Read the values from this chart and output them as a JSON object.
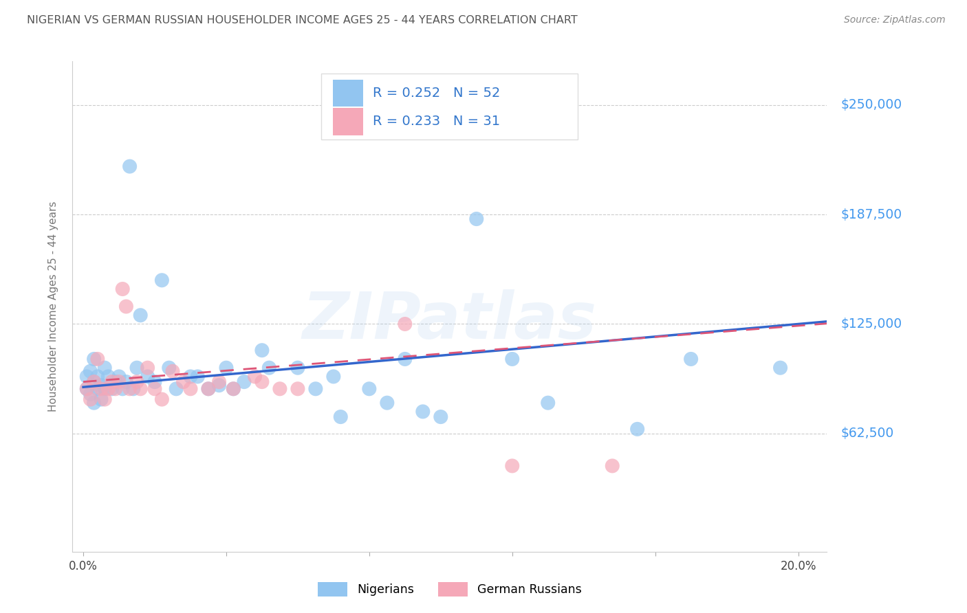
{
  "title": "NIGERIAN VS GERMAN RUSSIAN HOUSEHOLDER INCOME AGES 25 - 44 YEARS CORRELATION CHART",
  "source": "Source: ZipAtlas.com",
  "ylabel": "Householder Income Ages 25 - 44 years",
  "ytick_values": [
    62500,
    125000,
    187500,
    250000
  ],
  "ytick_labels": [
    "$62,500",
    "$125,000",
    "$187,500",
    "$250,000"
  ],
  "ymax": 275000,
  "ymin": -5000,
  "xmin": -0.003,
  "xmax": 0.208,
  "watermark_text": "ZIPatlas",
  "nigerian_x": [
    0.001,
    0.001,
    0.002,
    0.002,
    0.003,
    0.003,
    0.003,
    0.004,
    0.004,
    0.005,
    0.005,
    0.006,
    0.006,
    0.007,
    0.008,
    0.009,
    0.01,
    0.011,
    0.012,
    0.013,
    0.014,
    0.015,
    0.016,
    0.018,
    0.02,
    0.022,
    0.024,
    0.026,
    0.03,
    0.032,
    0.035,
    0.038,
    0.04,
    0.042,
    0.045,
    0.05,
    0.052,
    0.06,
    0.065,
    0.07,
    0.072,
    0.08,
    0.085,
    0.09,
    0.095,
    0.1,
    0.11,
    0.12,
    0.13,
    0.155,
    0.17,
    0.195
  ],
  "nigerian_y": [
    95000,
    88000,
    98000,
    85000,
    92000,
    105000,
    80000,
    88000,
    95000,
    90000,
    82000,
    100000,
    88000,
    95000,
    88000,
    92000,
    95000,
    88000,
    92000,
    215000,
    88000,
    100000,
    130000,
    95000,
    92000,
    150000,
    100000,
    88000,
    95000,
    95000,
    88000,
    90000,
    100000,
    88000,
    92000,
    110000,
    100000,
    100000,
    88000,
    95000,
    72000,
    88000,
    80000,
    105000,
    75000,
    72000,
    185000,
    105000,
    80000,
    65000,
    105000,
    100000
  ],
  "german_russian_x": [
    0.001,
    0.002,
    0.003,
    0.004,
    0.005,
    0.006,
    0.007,
    0.008,
    0.009,
    0.01,
    0.011,
    0.012,
    0.013,
    0.015,
    0.016,
    0.018,
    0.02,
    0.022,
    0.025,
    0.028,
    0.03,
    0.035,
    0.038,
    0.042,
    0.048,
    0.05,
    0.055,
    0.06,
    0.09,
    0.12,
    0.148
  ],
  "german_russian_y": [
    88000,
    82000,
    92000,
    105000,
    88000,
    82000,
    88000,
    92000,
    88000,
    92000,
    145000,
    135000,
    88000,
    92000,
    88000,
    100000,
    88000,
    82000,
    98000,
    92000,
    88000,
    88000,
    92000,
    88000,
    95000,
    92000,
    88000,
    88000,
    125000,
    44000,
    44000
  ],
  "nigerian_R": 0.252,
  "nigerian_N": 52,
  "german_russian_R": 0.233,
  "german_russian_N": 31,
  "nigerian_color": "#92c5f0",
  "german_russian_color": "#f5a8b8",
  "nigerian_line_color": "#3366cc",
  "german_russian_line_color": "#dd5577",
  "background_color": "#ffffff",
  "grid_color": "#cccccc",
  "title_color": "#555555",
  "ytick_color": "#4499ee",
  "xtick_color": "#444444",
  "source_color": "#888888",
  "legend_text_dark": "#333333",
  "legend_rn_color": "#3377cc"
}
